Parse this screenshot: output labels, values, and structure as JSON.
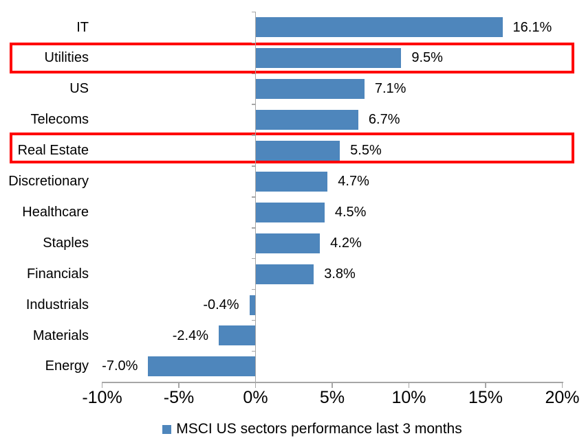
{
  "chart_data": {
    "type": "bar",
    "orientation": "horizontal",
    "title": "",
    "xlabel": "",
    "ylabel": "",
    "categories": [
      "IT",
      "Utilities",
      "US",
      "Telecoms",
      "Real Estate",
      "Discretionary",
      "Healthcare",
      "Staples",
      "Financials",
      "Industrials",
      "Materials",
      "Energy"
    ],
    "series": [
      {
        "name": "MSCI US sectors performance last 3 months",
        "color": "#4E86BC",
        "values": [
          16.1,
          9.5,
          7.1,
          6.7,
          5.5,
          4.7,
          4.5,
          4.2,
          3.8,
          -0.4,
          -2.4,
          -7.0
        ],
        "data_labels": [
          "16.1%",
          "9.5%",
          "7.1%",
          "6.7%",
          "5.5%",
          "4.7%",
          "4.5%",
          "4.2%",
          "3.8%",
          "-0.4%",
          "-2.4%",
          "-7.0%"
        ]
      }
    ],
    "xlim": [
      -10,
      20
    ],
    "x_ticks": [
      {
        "value": -10,
        "label": "-10%"
      },
      {
        "value": -5,
        "label": "-5%"
      },
      {
        "value": 0,
        "label": "0%"
      },
      {
        "value": 5,
        "label": "5%"
      },
      {
        "value": 10,
        "label": "10%"
      },
      {
        "value": 15,
        "label": "15%"
      },
      {
        "value": 20,
        "label": "20%"
      }
    ],
    "grid": false,
    "legend": {
      "position": "bottom",
      "entries": [
        {
          "label": "MSCI US sectors performance last 3 months",
          "marker_color": "#4E86BC"
        }
      ]
    },
    "highlighted_categories": [
      "Utilities",
      "Real Estate"
    ],
    "highlight_color": "#FF0000",
    "axis_color": "#A6A6A6",
    "text_color": "#000000"
  }
}
